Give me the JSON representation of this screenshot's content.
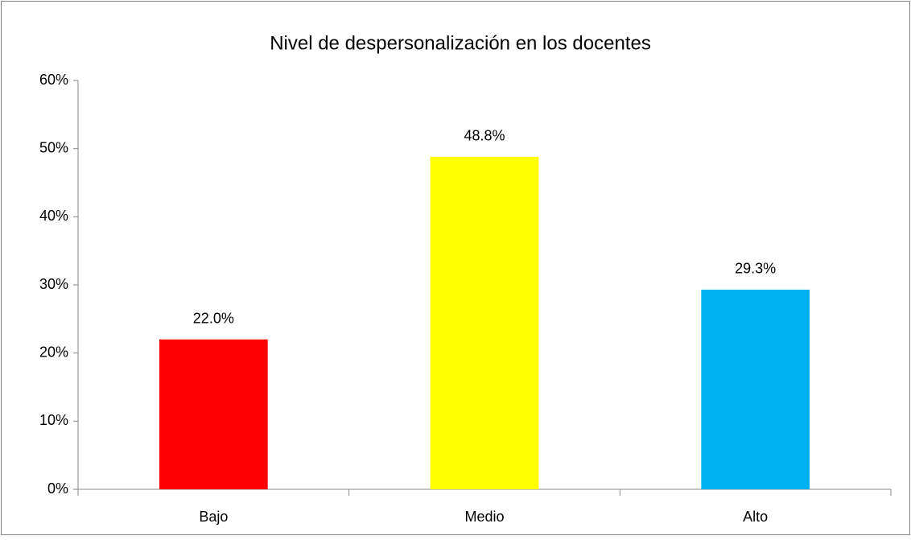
{
  "chart_data": {
    "type": "bar",
    "title": "Nivel de despersonalización en los docentes",
    "categories": [
      "Bajo",
      "Medio",
      "Alto"
    ],
    "values": [
      22.0,
      48.8,
      29.3
    ],
    "value_labels": [
      "22.0%",
      "48.8%",
      "29.3%"
    ],
    "colors": [
      "#ff0000",
      "#ffff00",
      "#00b0f0"
    ],
    "ylim": [
      0,
      60
    ],
    "yticks": [
      {
        "value": 0,
        "label": "0%"
      },
      {
        "value": 10,
        "label": "10%"
      },
      {
        "value": 20,
        "label": "20%"
      },
      {
        "value": 30,
        "label": "30%"
      },
      {
        "value": 40,
        "label": "40%"
      },
      {
        "value": 50,
        "label": "50%"
      },
      {
        "value": 60,
        "label": "60%"
      }
    ],
    "grid": false
  }
}
